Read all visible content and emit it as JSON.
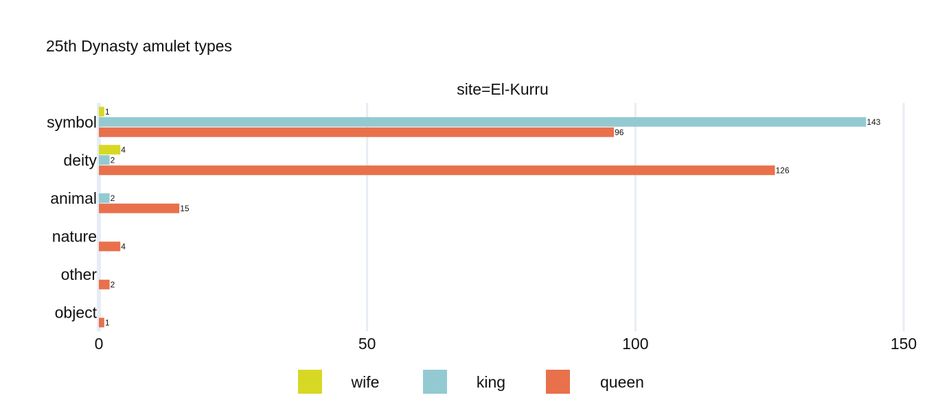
{
  "chart_data": {
    "type": "bar",
    "orientation": "horizontal",
    "title": "25th Dynasty amulet types",
    "subtitle": "site=El-Kurru",
    "xlabel": "",
    "ylabel": "",
    "xlim": [
      0,
      150
    ],
    "x_ticks": [
      0,
      50,
      100,
      150
    ],
    "grid": true,
    "legend_position": "bottom",
    "categories": [
      "symbol",
      "deity",
      "animal",
      "nature",
      "other",
      "object"
    ],
    "series": [
      {
        "name": "wife",
        "color": "#d7d824",
        "values": [
          1,
          4,
          null,
          null,
          null,
          null
        ]
      },
      {
        "name": "king",
        "color": "#93cad1",
        "values": [
          143,
          2,
          2,
          null,
          null,
          null
        ]
      },
      {
        "name": "queen",
        "color": "#e8714c",
        "values": [
          96,
          126,
          15,
          4,
          2,
          1
        ]
      }
    ]
  }
}
